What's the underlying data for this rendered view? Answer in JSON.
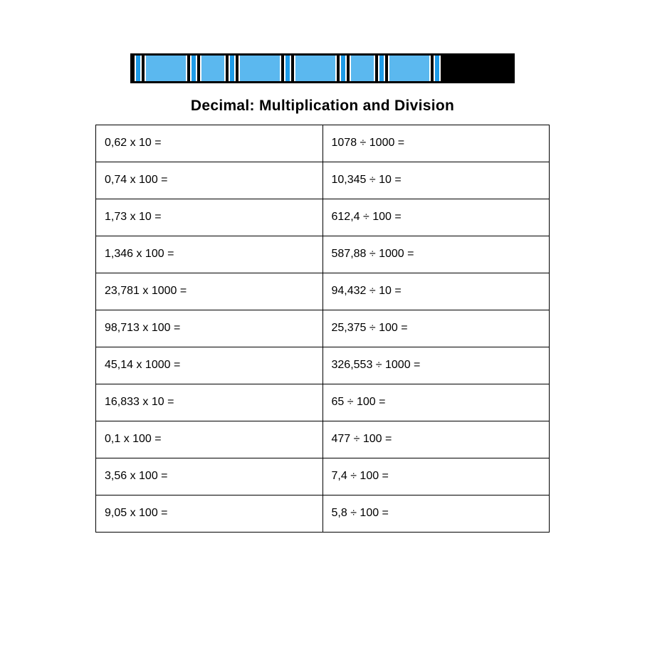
{
  "title": "Decimal: Multiplication and Division",
  "decorative_bar": {
    "colors": {
      "dark": "#1e9be8",
      "light": "#5bb8ef",
      "border": "#000000",
      "stripe": "#ffffff"
    }
  },
  "table": {
    "rows": [
      {
        "left": "0,62 x 10 =",
        "right": "1078 ÷ 1000 ="
      },
      {
        "left": "0,74 x 100 =",
        "right": "10,345 ÷ 10 ="
      },
      {
        "left": "1,73 x 10 =",
        "right": "612,4 ÷ 100 ="
      },
      {
        "left": "1,346 x 100 =",
        "right": "587,88 ÷ 1000 ="
      },
      {
        "left": "23,781 x 1000 =",
        "right": "94,432 ÷ 10 ="
      },
      {
        "left": "98,713 x 100 =",
        "right": "25,375 ÷ 100 ="
      },
      {
        "left": "45,14 x 1000 =",
        "right": "326,553 ÷ 1000 ="
      },
      {
        "left": "16,833 x 10 =",
        "right": "65 ÷ 100 ="
      },
      {
        "left": "0,1 x 100 =",
        "right": "477 ÷ 100 ="
      },
      {
        "left": "3,56 x 100 =",
        "right": "7,4 ÷ 100 ="
      },
      {
        "left": "9,05 x 100 =",
        "right": " 5,8 ÷ 100 ="
      }
    ],
    "border_color": "#000000",
    "background_color": "#ffffff",
    "font_size": 16,
    "cell_padding": 14
  }
}
